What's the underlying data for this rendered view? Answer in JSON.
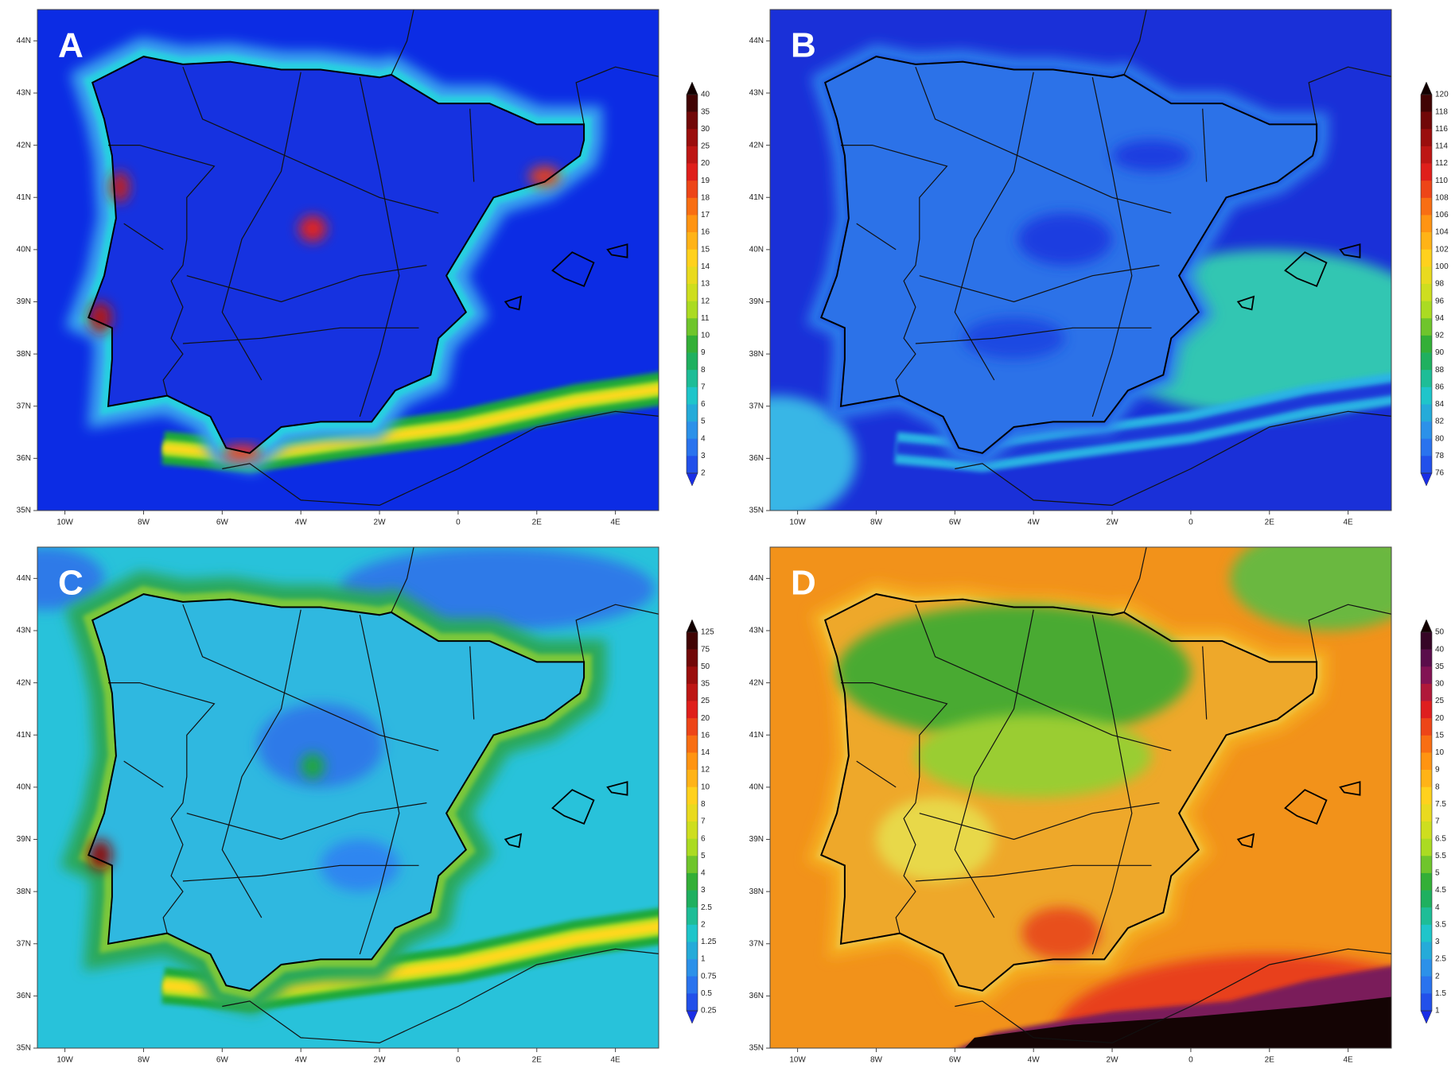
{
  "panels": [
    {
      "label": "A",
      "colorbar": {
        "levels": [
          40,
          35,
          30,
          25,
          20,
          19,
          18,
          17,
          16,
          15,
          14,
          13,
          12,
          11,
          10,
          9,
          8,
          7,
          6,
          5,
          4,
          3,
          2
        ],
        "palette": [
          "#120000",
          "#8b0a0a",
          "#e3201c",
          "#ff8a10",
          "#ffd81e",
          "#b8e020",
          "#1fa83a",
          "#1ec8c8",
          "#2f86f0",
          "#1a2ee6"
        ]
      }
    },
    {
      "label": "B",
      "colorbar": {
        "levels": [
          120,
          118,
          116,
          114,
          112,
          110,
          108,
          106,
          104,
          102,
          100,
          98,
          96,
          94,
          92,
          90,
          88,
          86,
          84,
          82,
          80,
          78,
          76
        ],
        "palette": [
          "#120000",
          "#8b0a0a",
          "#e3201c",
          "#ff8a10",
          "#ffd81e",
          "#b8e020",
          "#1fa83a",
          "#1ec8c8",
          "#2f86f0",
          "#1a2ee6"
        ]
      }
    },
    {
      "label": "C",
      "colorbar": {
        "levels": [
          125,
          75,
          50,
          35,
          25,
          20,
          16,
          14,
          12,
          10,
          8,
          7,
          6,
          5,
          4,
          3,
          2.5,
          2,
          1.25,
          1,
          0.75,
          0.5,
          0.25
        ],
        "palette": [
          "#120000",
          "#8b0a0a",
          "#e3201c",
          "#ff8a10",
          "#ffd81e",
          "#b8e020",
          "#1fa83a",
          "#1ec8c8",
          "#2f86f0",
          "#1a2ee6"
        ]
      }
    },
    {
      "label": "D",
      "colorbar": {
        "levels": [
          50,
          40,
          35,
          30,
          25,
          20,
          15,
          10,
          9,
          8,
          7.5,
          7,
          6.5,
          5.5,
          5,
          4.5,
          4,
          3.5,
          3,
          2.5,
          2,
          1.5,
          1
        ],
        "palette": [
          "#120000",
          "#6e1060",
          "#e3201c",
          "#ff8a10",
          "#ffd81e",
          "#b8e020",
          "#1fa83a",
          "#1ec8c8",
          "#2f86f0",
          "#1a2ee6"
        ]
      }
    }
  ],
  "map": {
    "xlim": [
      -10.7,
      5.1
    ],
    "ylim": [
      35,
      44.6
    ],
    "xticks": [
      {
        "value": -10,
        "label": "10W"
      },
      {
        "value": -8,
        "label": "8W"
      },
      {
        "value": -6,
        "label": "6W"
      },
      {
        "value": -4,
        "label": "4W"
      },
      {
        "value": -2,
        "label": "2W"
      },
      0,
      {
        "value": 2,
        "label": "2E"
      },
      {
        "value": 4,
        "label": "4E"
      }
    ],
    "yticks": [
      {
        "value": 35,
        "label": "35N"
      },
      {
        "value": 36,
        "label": "36N"
      },
      {
        "value": 37,
        "label": "37N"
      },
      {
        "value": 38,
        "label": "38N"
      },
      {
        "value": 39,
        "label": "39N"
      },
      {
        "value": 40,
        "label": "40N"
      },
      {
        "value": 41,
        "label": "41N"
      },
      {
        "value": 42,
        "label": "42N"
      },
      {
        "value": 43,
        "label": "43N"
      },
      {
        "value": 44,
        "label": "44N"
      }
    ]
  }
}
